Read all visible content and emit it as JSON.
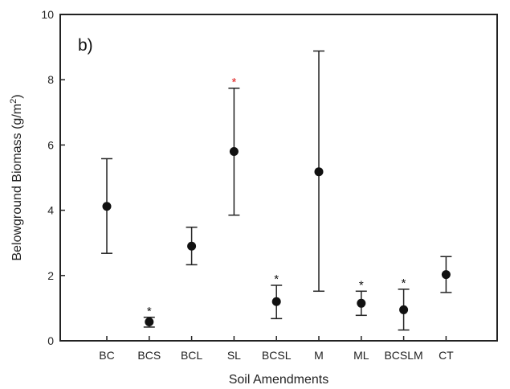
{
  "chart_data": {
    "type": "scatter",
    "panel_label": "b)",
    "xlabel": "Soil Amendments",
    "ylabel_main": "Belowground Biomass (g/m",
    "ylabel_sup": "2",
    "ylabel_close": ")",
    "categories": [
      "BC",
      "BCS",
      "BCL",
      "SL",
      "BCSL",
      "M",
      "ML",
      "BCSLM",
      "CT"
    ],
    "y_ticks": [
      "0",
      "2",
      "4",
      "6",
      "8",
      "10"
    ],
    "ylim": [
      0,
      10
    ],
    "grid": false,
    "series": [
      {
        "values": [
          4.12,
          0.58,
          2.9,
          5.8,
          1.2,
          5.18,
          1.15,
          0.95,
          2.03
        ],
        "error_low": [
          2.68,
          0.42,
          2.33,
          3.85,
          0.68,
          1.52,
          0.78,
          0.33,
          1.48
        ],
        "error_high": [
          5.58,
          0.72,
          3.48,
          7.74,
          1.7,
          8.88,
          1.52,
          1.58,
          2.58
        ]
      }
    ],
    "annotations": [
      {
        "category": "BCS",
        "text": "*",
        "color": "#111111"
      },
      {
        "category": "SL",
        "text": "*",
        "color": "#e02020"
      },
      {
        "category": "BCSL",
        "text": "*",
        "color": "#111111"
      },
      {
        "category": "ML",
        "text": "*",
        "color": "#111111"
      },
      {
        "category": "BCSLM",
        "text": "*",
        "color": "#111111"
      }
    ],
    "colors": {
      "marker": "#111111",
      "axis": "#222222"
    }
  }
}
